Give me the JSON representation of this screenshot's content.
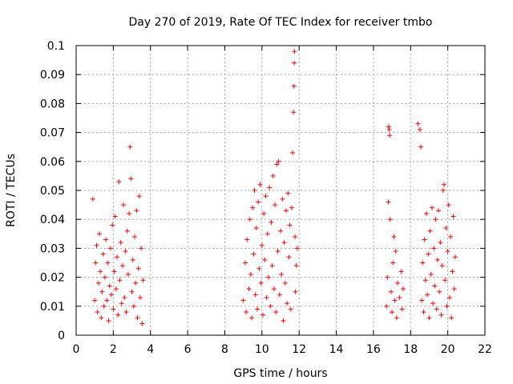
{
  "chart_data": {
    "type": "scatter",
    "title": "Day 270 of 2019, Rate Of TEC Index for receiver tmbo",
    "xlabel": "GPS time / hours",
    "ylabel": "ROTI / TECUs",
    "xlim": [
      0,
      22
    ],
    "ylim": [
      0,
      0.1
    ],
    "x_ticks": [
      "0",
      "2",
      "4",
      "6",
      "8",
      "10",
      "12",
      "14",
      "16",
      "18",
      "20",
      "22"
    ],
    "y_ticks": [
      "0",
      "0.01",
      "0.02",
      "0.03",
      "0.04",
      "0.05",
      "0.06",
      "0.07",
      "0.08",
      "0.09",
      "0.1"
    ],
    "grid": true,
    "marker": "+",
    "color": "#ff0000",
    "series": [
      {
        "name": "ROTI",
        "points": [
          [
            0.9,
            0.047
          ],
          [
            1.0,
            0.012
          ],
          [
            1.05,
            0.025
          ],
          [
            1.1,
            0.031
          ],
          [
            1.15,
            0.008
          ],
          [
            1.2,
            0.018
          ],
          [
            1.25,
            0.035
          ],
          [
            1.3,
            0.022
          ],
          [
            1.35,
            0.006
          ],
          [
            1.4,
            0.015
          ],
          [
            1.45,
            0.028
          ],
          [
            1.5,
            0.01
          ],
          [
            1.55,
            0.02
          ],
          [
            1.6,
            0.033
          ],
          [
            1.65,
            0.012
          ],
          [
            1.7,
            0.025
          ],
          [
            1.75,
            0.005
          ],
          [
            1.8,
            0.017
          ],
          [
            1.85,
            0.03
          ],
          [
            1.9,
            0.014
          ],
          [
            1.95,
            0.038
          ],
          [
            2.0,
            0.009
          ],
          [
            2.05,
            0.022
          ],
          [
            2.1,
            0.041
          ],
          [
            2.15,
            0.016
          ],
          [
            2.2,
            0.027
          ],
          [
            2.25,
            0.007
          ],
          [
            2.3,
            0.053
          ],
          [
            2.35,
            0.019
          ],
          [
            2.4,
            0.032
          ],
          [
            2.45,
            0.011
          ],
          [
            2.5,
            0.024
          ],
          [
            2.55,
            0.045
          ],
          [
            2.6,
            0.013
          ],
          [
            2.65,
            0.029
          ],
          [
            2.7,
            0.008
          ],
          [
            2.75,
            0.036
          ],
          [
            2.8,
            0.021
          ],
          [
            2.85,
            0.042
          ],
          [
            2.9,
            0.065
          ],
          [
            2.95,
            0.054
          ],
          [
            3.0,
            0.015
          ],
          [
            3.05,
            0.026
          ],
          [
            3.1,
            0.01
          ],
          [
            3.15,
            0.034
          ],
          [
            3.2,
            0.018
          ],
          [
            3.25,
            0.043
          ],
          [
            3.3,
            0.006
          ],
          [
            3.35,
            0.023
          ],
          [
            3.4,
            0.048
          ],
          [
            3.45,
            0.013
          ],
          [
            3.5,
            0.03
          ],
          [
            3.55,
            0.004
          ],
          [
            3.6,
            0.019
          ],
          [
            9.0,
            0.012
          ],
          [
            9.1,
            0.025
          ],
          [
            9.15,
            0.008
          ],
          [
            9.2,
            0.033
          ],
          [
            9.3,
            0.016
          ],
          [
            9.35,
            0.04
          ],
          [
            9.4,
            0.021
          ],
          [
            9.45,
            0.006
          ],
          [
            9.5,
            0.044
          ],
          [
            9.55,
            0.028
          ],
          [
            9.6,
            0.05
          ],
          [
            9.65,
            0.014
          ],
          [
            9.7,
            0.037
          ],
          [
            9.75,
            0.009
          ],
          [
            9.8,
            0.046
          ],
          [
            9.85,
            0.023
          ],
          [
            9.9,
            0.052
          ],
          [
            9.95,
            0.018
          ],
          [
            10.0,
            0.031
          ],
          [
            10.05,
            0.007
          ],
          [
            10.1,
            0.042
          ],
          [
            10.15,
            0.026
          ],
          [
            10.2,
            0.048
          ],
          [
            10.25,
            0.013
          ],
          [
            10.3,
            0.035
          ],
          [
            10.35,
            0.02
          ],
          [
            10.4,
            0.051
          ],
          [
            10.45,
            0.01
          ],
          [
            10.5,
            0.039
          ],
          [
            10.55,
            0.024
          ],
          [
            10.6,
            0.055
          ],
          [
            10.65,
            0.016
          ],
          [
            10.7,
            0.045
          ],
          [
            10.75,
            0.008
          ],
          [
            10.8,
            0.059
          ],
          [
            10.85,
            0.029
          ],
          [
            10.9,
            0.06
          ],
          [
            10.95,
            0.014
          ],
          [
            11.0,
            0.036
          ],
          [
            11.05,
            0.021
          ],
          [
            11.1,
            0.047
          ],
          [
            11.15,
            0.005
          ],
          [
            11.2,
            0.032
          ],
          [
            11.25,
            0.018
          ],
          [
            11.3,
            0.043
          ],
          [
            11.35,
            0.011
          ],
          [
            11.4,
            0.049
          ],
          [
            11.45,
            0.027
          ],
          [
            11.5,
            0.038
          ],
          [
            11.55,
            0.009
          ],
          [
            11.6,
            0.044
          ],
          [
            11.65,
            0.063
          ],
          [
            11.7,
            0.077
          ],
          [
            11.72,
            0.086
          ],
          [
            11.74,
            0.094
          ],
          [
            11.75,
            0.098
          ],
          [
            11.78,
            0.034
          ],
          [
            11.8,
            0.015
          ],
          [
            11.85,
            0.024
          ],
          [
            11.9,
            0.03
          ],
          [
            16.7,
            0.01
          ],
          [
            16.75,
            0.02
          ],
          [
            16.8,
            0.046
          ],
          [
            16.82,
            0.072
          ],
          [
            16.85,
            0.071
          ],
          [
            16.87,
            0.069
          ],
          [
            16.9,
            0.04
          ],
          [
            16.95,
            0.015
          ],
          [
            17.0,
            0.008
          ],
          [
            17.05,
            0.025
          ],
          [
            17.1,
            0.034
          ],
          [
            17.15,
            0.012
          ],
          [
            17.2,
            0.029
          ],
          [
            17.25,
            0.006
          ],
          [
            17.3,
            0.018
          ],
          [
            17.4,
            0.013
          ],
          [
            17.5,
            0.022
          ],
          [
            17.55,
            0.009
          ],
          [
            17.6,
            0.016
          ],
          [
            18.4,
            0.073
          ],
          [
            18.5,
            0.071
          ],
          [
            18.55,
            0.065
          ],
          [
            18.6,
            0.012
          ],
          [
            18.65,
            0.025
          ],
          [
            18.7,
            0.008
          ],
          [
            18.75,
            0.033
          ],
          [
            18.8,
            0.019
          ],
          [
            18.85,
            0.042
          ],
          [
            18.9,
            0.014
          ],
          [
            18.95,
            0.028
          ],
          [
            19.0,
            0.006
          ],
          [
            19.05,
            0.036
          ],
          [
            19.1,
            0.021
          ],
          [
            19.15,
            0.044
          ],
          [
            19.2,
            0.011
          ],
          [
            19.25,
            0.03
          ],
          [
            19.3,
            0.017
          ],
          [
            19.35,
            0.04
          ],
          [
            19.4,
            0.009
          ],
          [
            19.45,
            0.026
          ],
          [
            19.5,
            0.043
          ],
          [
            19.55,
            0.015
          ],
          [
            19.6,
            0.032
          ],
          [
            19.65,
            0.007
          ],
          [
            19.7,
            0.024
          ],
          [
            19.75,
            0.05
          ],
          [
            19.8,
            0.052
          ],
          [
            19.85,
            0.019
          ],
          [
            19.9,
            0.037
          ],
          [
            19.95,
            0.01
          ],
          [
            20.0,
            0.029
          ],
          [
            20.05,
            0.045
          ],
          [
            20.1,
            0.013
          ],
          [
            20.15,
            0.034
          ],
          [
            20.2,
            0.006
          ],
          [
            20.25,
            0.022
          ],
          [
            20.3,
            0.041
          ],
          [
            20.35,
            0.016
          ],
          [
            20.4,
            0.027
          ]
        ]
      }
    ]
  }
}
